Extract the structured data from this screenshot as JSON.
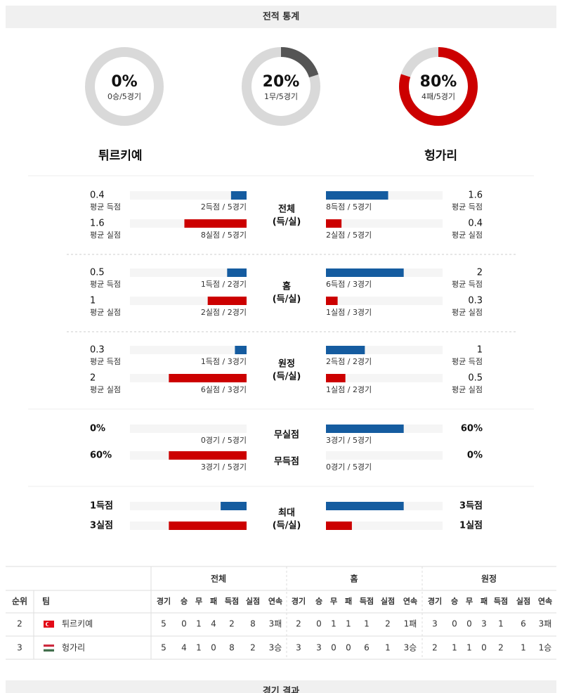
{
  "header": {
    "title": "전적 통계"
  },
  "colors": {
    "scored": "#155ca0",
    "conceded": "#cc0000"
  },
  "donuts": [
    {
      "value": 0,
      "label": "0%",
      "sub": "0승/5경기"
    },
    {
      "value": 20,
      "label": "20%",
      "sub": "1무/5경기",
      "color": "#555555"
    },
    {
      "value": 80,
      "label": "80%",
      "sub": "4패/5경기",
      "color": "#cc0000"
    }
  ],
  "teams": [
    "튀르키예",
    "헝가리"
  ],
  "sections": [
    {
      "label": [
        "전체",
        "(득/실)"
      ],
      "rows": [
        {
          "left": {
            "value": 0.4,
            "caption": "평균 득점",
            "detail": "2득점 / 5경기"
          },
          "right": {
            "value": 1.6,
            "caption": "평균 득점",
            "detail": "8득점 / 5경기"
          }
        },
        {
          "left": {
            "value": 1.6,
            "caption": "평균 실점",
            "detail": "8실점 / 5경기"
          },
          "right": {
            "value": 0.4,
            "caption": "평균 실점",
            "detail": "2실점 / 5경기"
          }
        }
      ]
    },
    {
      "label": [
        "홈",
        "(득/실)"
      ],
      "rows": [
        {
          "left": {
            "value": 0.5,
            "caption": "평균 득점",
            "detail": "1득점 / 2경기"
          },
          "right": {
            "value": 2,
            "caption": "평균 득점",
            "detail": "6득점 / 3경기"
          }
        },
        {
          "left": {
            "value": 1,
            "caption": "평균 실점",
            "detail": "2실점 / 2경기"
          },
          "right": {
            "value": 0.3,
            "caption": "평균 실점",
            "detail": "1실점 / 3경기"
          }
        }
      ]
    },
    {
      "label": [
        "원정",
        "(득/실)"
      ],
      "rows": [
        {
          "left": {
            "value": 0.3,
            "caption": "평균 득점",
            "detail": "1득점 / 3경기"
          },
          "right": {
            "value": 1,
            "caption": "평균 득점",
            "detail": "2득점 / 2경기"
          }
        },
        {
          "left": {
            "value": 2,
            "caption": "평균 실점",
            "detail": "6실점 / 3경기"
          },
          "right": {
            "value": 0.5,
            "caption": "평균 실점",
            "detail": "1실점 / 2경기"
          }
        }
      ]
    },
    {
      "rows": [
        {
          "label": "무실점",
          "left": {
            "value": 0,
            "label": "0%",
            "detail": "0경기 / 5경기"
          },
          "right": {
            "value": 60,
            "label": "60%",
            "detail": "3경기 / 5경기"
          }
        },
        {
          "label": "무득점",
          "left": {
            "value": 60,
            "label": "60%",
            "detail": "3경기 / 5경기"
          },
          "right": {
            "value": 0,
            "label": "0%",
            "detail": "0경기 / 5경기"
          }
        }
      ]
    },
    {
      "label": [
        "최대",
        "(득/실)"
      ],
      "rows": [
        {
          "left": {
            "value": 1,
            "label": "1득점"
          },
          "right": {
            "value": 3,
            "label": "3득점"
          }
        },
        {
          "left": {
            "value": 3,
            "label": "3실점"
          },
          "right": {
            "value": 1,
            "label": "1실점"
          }
        }
      ]
    }
  ],
  "table": {
    "head": [
      "순위",
      "팀"
    ],
    "groups": [
      "전체",
      "홈",
      "원정"
    ],
    "columns": [
      "경기",
      "승",
      "무",
      "패",
      "득점",
      "실점",
      "연속"
    ],
    "rows": [
      {
        "rank": 2,
        "team": "튀르키예",
        "stats": [
          [
            5,
            0,
            1,
            4,
            2,
            8,
            "3패"
          ],
          [
            2,
            0,
            1,
            1,
            1,
            2,
            "1패"
          ],
          [
            3,
            0,
            0,
            3,
            1,
            6,
            "3패"
          ]
        ]
      },
      {
        "rank": 3,
        "team": "헝가리",
        "stats": [
          [
            5,
            4,
            1,
            0,
            8,
            2,
            "3승"
          ],
          [
            3,
            3,
            0,
            0,
            6,
            1,
            "3승"
          ],
          [
            2,
            1,
            1,
            0,
            2,
            1,
            "1승"
          ]
        ]
      }
    ]
  },
  "footer": {
    "title": "경기 결과"
  }
}
